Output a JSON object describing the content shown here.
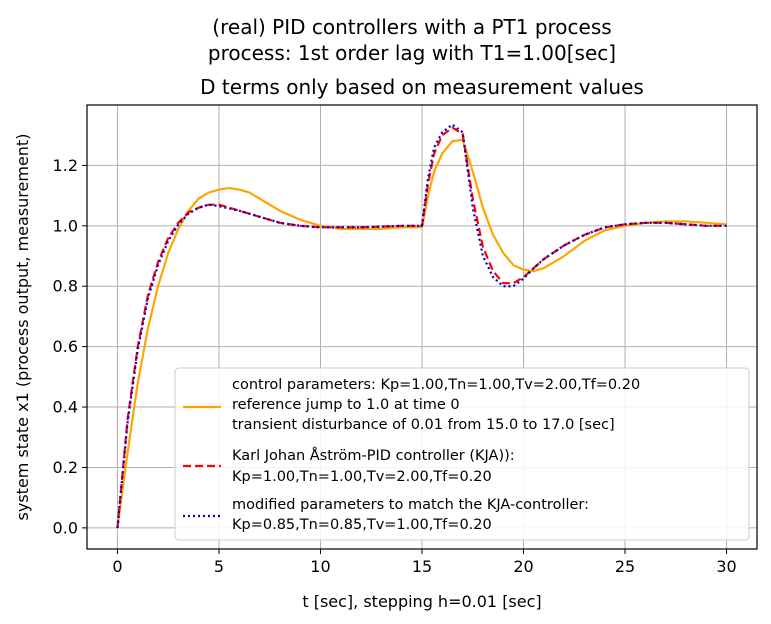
{
  "chart_data": {
    "type": "line",
    "title_lines": [
      "(real) PID controllers with a PT1 process",
      "process: 1st order lag with T1=1.00[sec]"
    ],
    "subtitle": "D terms only based on measurement values",
    "xlabel": "t [sec], stepping h=0.01 [sec]",
    "ylabel": "system state x1 (process output, measurement)",
    "xlim": [
      -1.5,
      31.5
    ],
    "ylim": [
      -0.07,
      1.4
    ],
    "xticks": [
      0,
      5,
      10,
      15,
      20,
      25,
      30
    ],
    "yticks": [
      0.0,
      0.2,
      0.4,
      0.6,
      0.8,
      1.0,
      1.2
    ],
    "grid": true,
    "legend_position": "lower-right",
    "series": [
      {
        "legend_lines": [
          "control parameters: Kp=1.00,Tn=1.00,Tv=2.00,Tf=0.20",
          "reference jump to 1.0 at time 0",
          "transient disturbance of 0.01 from 15.0 to 17.0 [sec]"
        ],
        "color": "#ffa500",
        "style": "solid",
        "x": [
          0,
          0.5,
          1,
          1.5,
          2,
          2.5,
          3,
          3.5,
          4,
          4.5,
          5,
          5.5,
          6,
          6.5,
          7,
          8,
          9,
          10,
          11,
          12,
          13,
          14,
          15,
          15.3,
          15.6,
          16,
          16.5,
          17,
          17.5,
          18,
          18.5,
          19,
          19.5,
          20,
          20.5,
          21,
          22,
          23,
          24,
          25,
          26,
          27,
          28,
          29,
          30
        ],
        "y": [
          0.0,
          0.25,
          0.48,
          0.66,
          0.8,
          0.91,
          0.99,
          1.05,
          1.09,
          1.11,
          1.12,
          1.125,
          1.12,
          1.11,
          1.09,
          1.05,
          1.02,
          1.0,
          0.99,
          0.99,
          0.99,
          0.995,
          0.995,
          1.1,
          1.18,
          1.24,
          1.28,
          1.285,
          1.18,
          1.06,
          0.97,
          0.91,
          0.87,
          0.855,
          0.85,
          0.86,
          0.9,
          0.95,
          0.985,
          1.0,
          1.01,
          1.015,
          1.015,
          1.01,
          1.005
        ]
      },
      {
        "legend_lines": [
          "Karl Johan Åström-PID controller (KJA)):",
          "Kp=1.00,Tn=1.00,Tv=2.00,Tf=0.20"
        ],
        "color": "#ff0000",
        "style": "dashed",
        "x": [
          0,
          0.5,
          1,
          1.5,
          2,
          2.5,
          3,
          3.5,
          4,
          4.5,
          5,
          6,
          7,
          8,
          9,
          10,
          12,
          14,
          15,
          15.3,
          15.6,
          16,
          16.5,
          17,
          17.5,
          18,
          18.5,
          19,
          19.5,
          20,
          20.5,
          21,
          22,
          23,
          24,
          25,
          26,
          27,
          28,
          29,
          30
        ],
        "y": [
          0.0,
          0.36,
          0.6,
          0.77,
          0.88,
          0.96,
          1.01,
          1.045,
          1.06,
          1.07,
          1.07,
          1.05,
          1.03,
          1.01,
          1.0,
          0.995,
          0.995,
          1.0,
          1.0,
          1.14,
          1.24,
          1.3,
          1.325,
          1.305,
          1.09,
          0.93,
          0.85,
          0.81,
          0.81,
          0.83,
          0.86,
          0.89,
          0.935,
          0.97,
          0.995,
          1.005,
          1.01,
          1.01,
          1.005,
          1.0,
          1.0
        ]
      },
      {
        "legend_lines": [
          "modified parameters to match the KJA-controller:",
          "Kp=0.85,Tn=0.85,Tv=1.00,Tf=0.20"
        ],
        "color": "#0000cc",
        "style": "dotted",
        "x": [
          0,
          0.5,
          1,
          1.5,
          2,
          2.5,
          3,
          3.5,
          4,
          4.5,
          5,
          6,
          7,
          8,
          9,
          10,
          12,
          14,
          15,
          15.3,
          15.6,
          16,
          16.5,
          17,
          17.5,
          18,
          18.5,
          19,
          19.5,
          20,
          20.5,
          21,
          22,
          23,
          24,
          25,
          26,
          27,
          28,
          29,
          30
        ],
        "y": [
          0.0,
          0.35,
          0.59,
          0.76,
          0.87,
          0.95,
          1.005,
          1.04,
          1.06,
          1.07,
          1.065,
          1.05,
          1.03,
          1.01,
          1.0,
          0.995,
          0.995,
          1.0,
          1.0,
          1.16,
          1.26,
          1.31,
          1.335,
          1.31,
          1.06,
          0.9,
          0.83,
          0.8,
          0.8,
          0.825,
          0.86,
          0.89,
          0.935,
          0.97,
          0.995,
          1.005,
          1.01,
          1.01,
          1.005,
          1.0,
          1.0
        ]
      }
    ]
  }
}
